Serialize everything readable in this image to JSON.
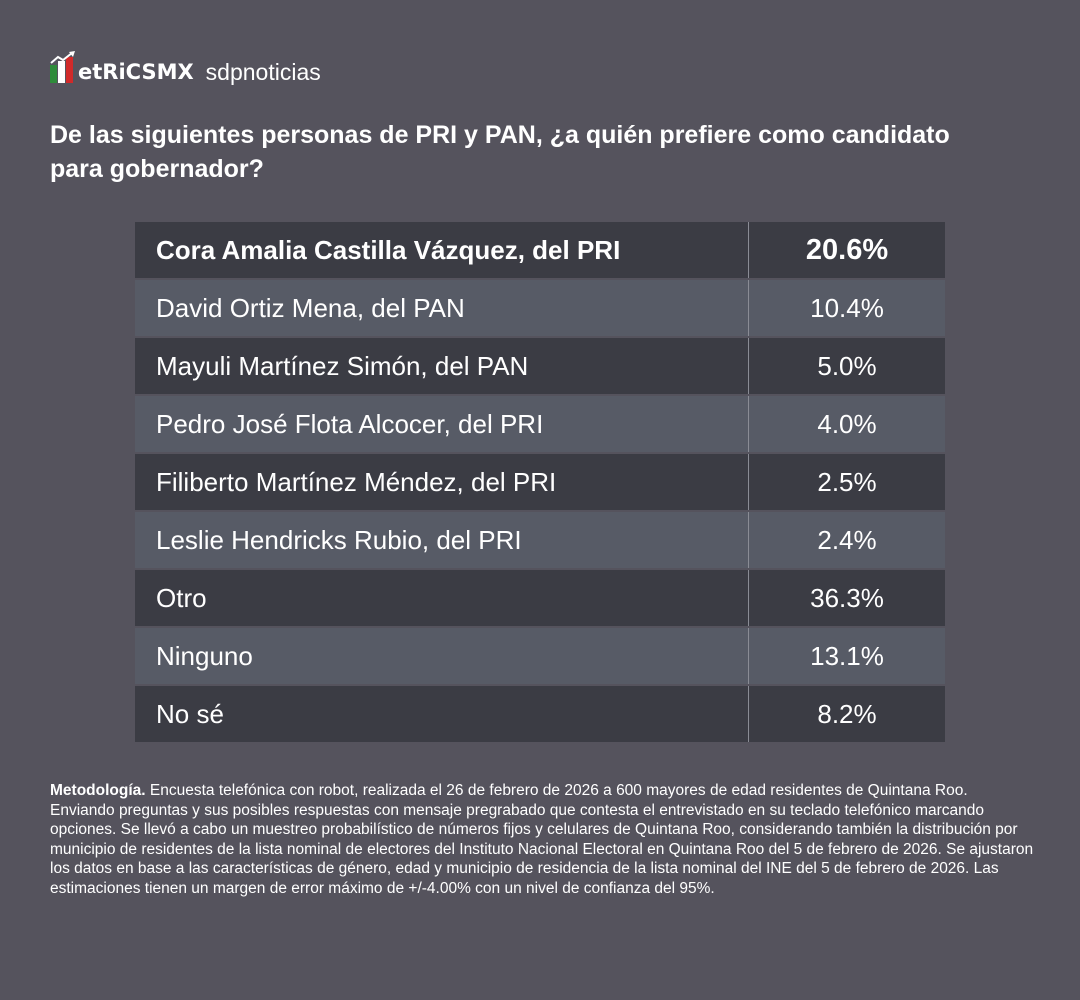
{
  "brand": {
    "logo_text": "MetricsMX",
    "partner": "sdpnoticias",
    "logo_colors": [
      "#2e8b3a",
      "#ffffff",
      "#d12a2a"
    ]
  },
  "title": "De las siguientes personas de PRI y PAN, ¿a quién prefiere como candidato para gobernador?",
  "table": {
    "rows": [
      {
        "label": "Cora Amalia Castilla Vázquez, del PRI",
        "value": "20.6%"
      },
      {
        "label": "David Ortiz Mena, del PAN",
        "value": "10.4%"
      },
      {
        "label": "Mayuli Martínez Simón, del PAN",
        "value": "5.0%"
      },
      {
        "label": "Pedro José Flota Alcocer, del PRI",
        "value": "4.0%"
      },
      {
        "label": "Filiberto Martínez Méndez, del PRI",
        "value": "2.5%"
      },
      {
        "label": "Leslie Hendricks Rubio, del PRI",
        "value": "2.4%"
      },
      {
        "label": "Otro",
        "value": "36.3%"
      },
      {
        "label": "Ninguno",
        "value": "13.1%"
      },
      {
        "label": "No sé",
        "value": "8.2%"
      }
    ]
  },
  "methodology": {
    "label": "Metodología.",
    "text": " Encuesta telefónica con robot, realizada el 26 de febrero de 2026 a 600 mayores de edad residentes de Quintana Roo. Enviando preguntas y sus posibles respuestas con mensaje pregrabado que contesta el entrevistado en su teclado telefónico marcando opciones. Se llevó a cabo un muestreo probabilístico de números fijos y celulares de Quintana Roo, considerando también la distribución por municipio de residentes de la lista nominal de electores del Instituto Nacional Electoral en Quintana Roo del 5 de febrero de 2026. Se ajustaron los datos en base a las características de género, edad y municipio de residencia de la lista nominal del INE del 5 de febrero de 2026. Las estimaciones tienen un margen de error máximo de +/-4.00% con un nivel de confianza del 95%."
  }
}
